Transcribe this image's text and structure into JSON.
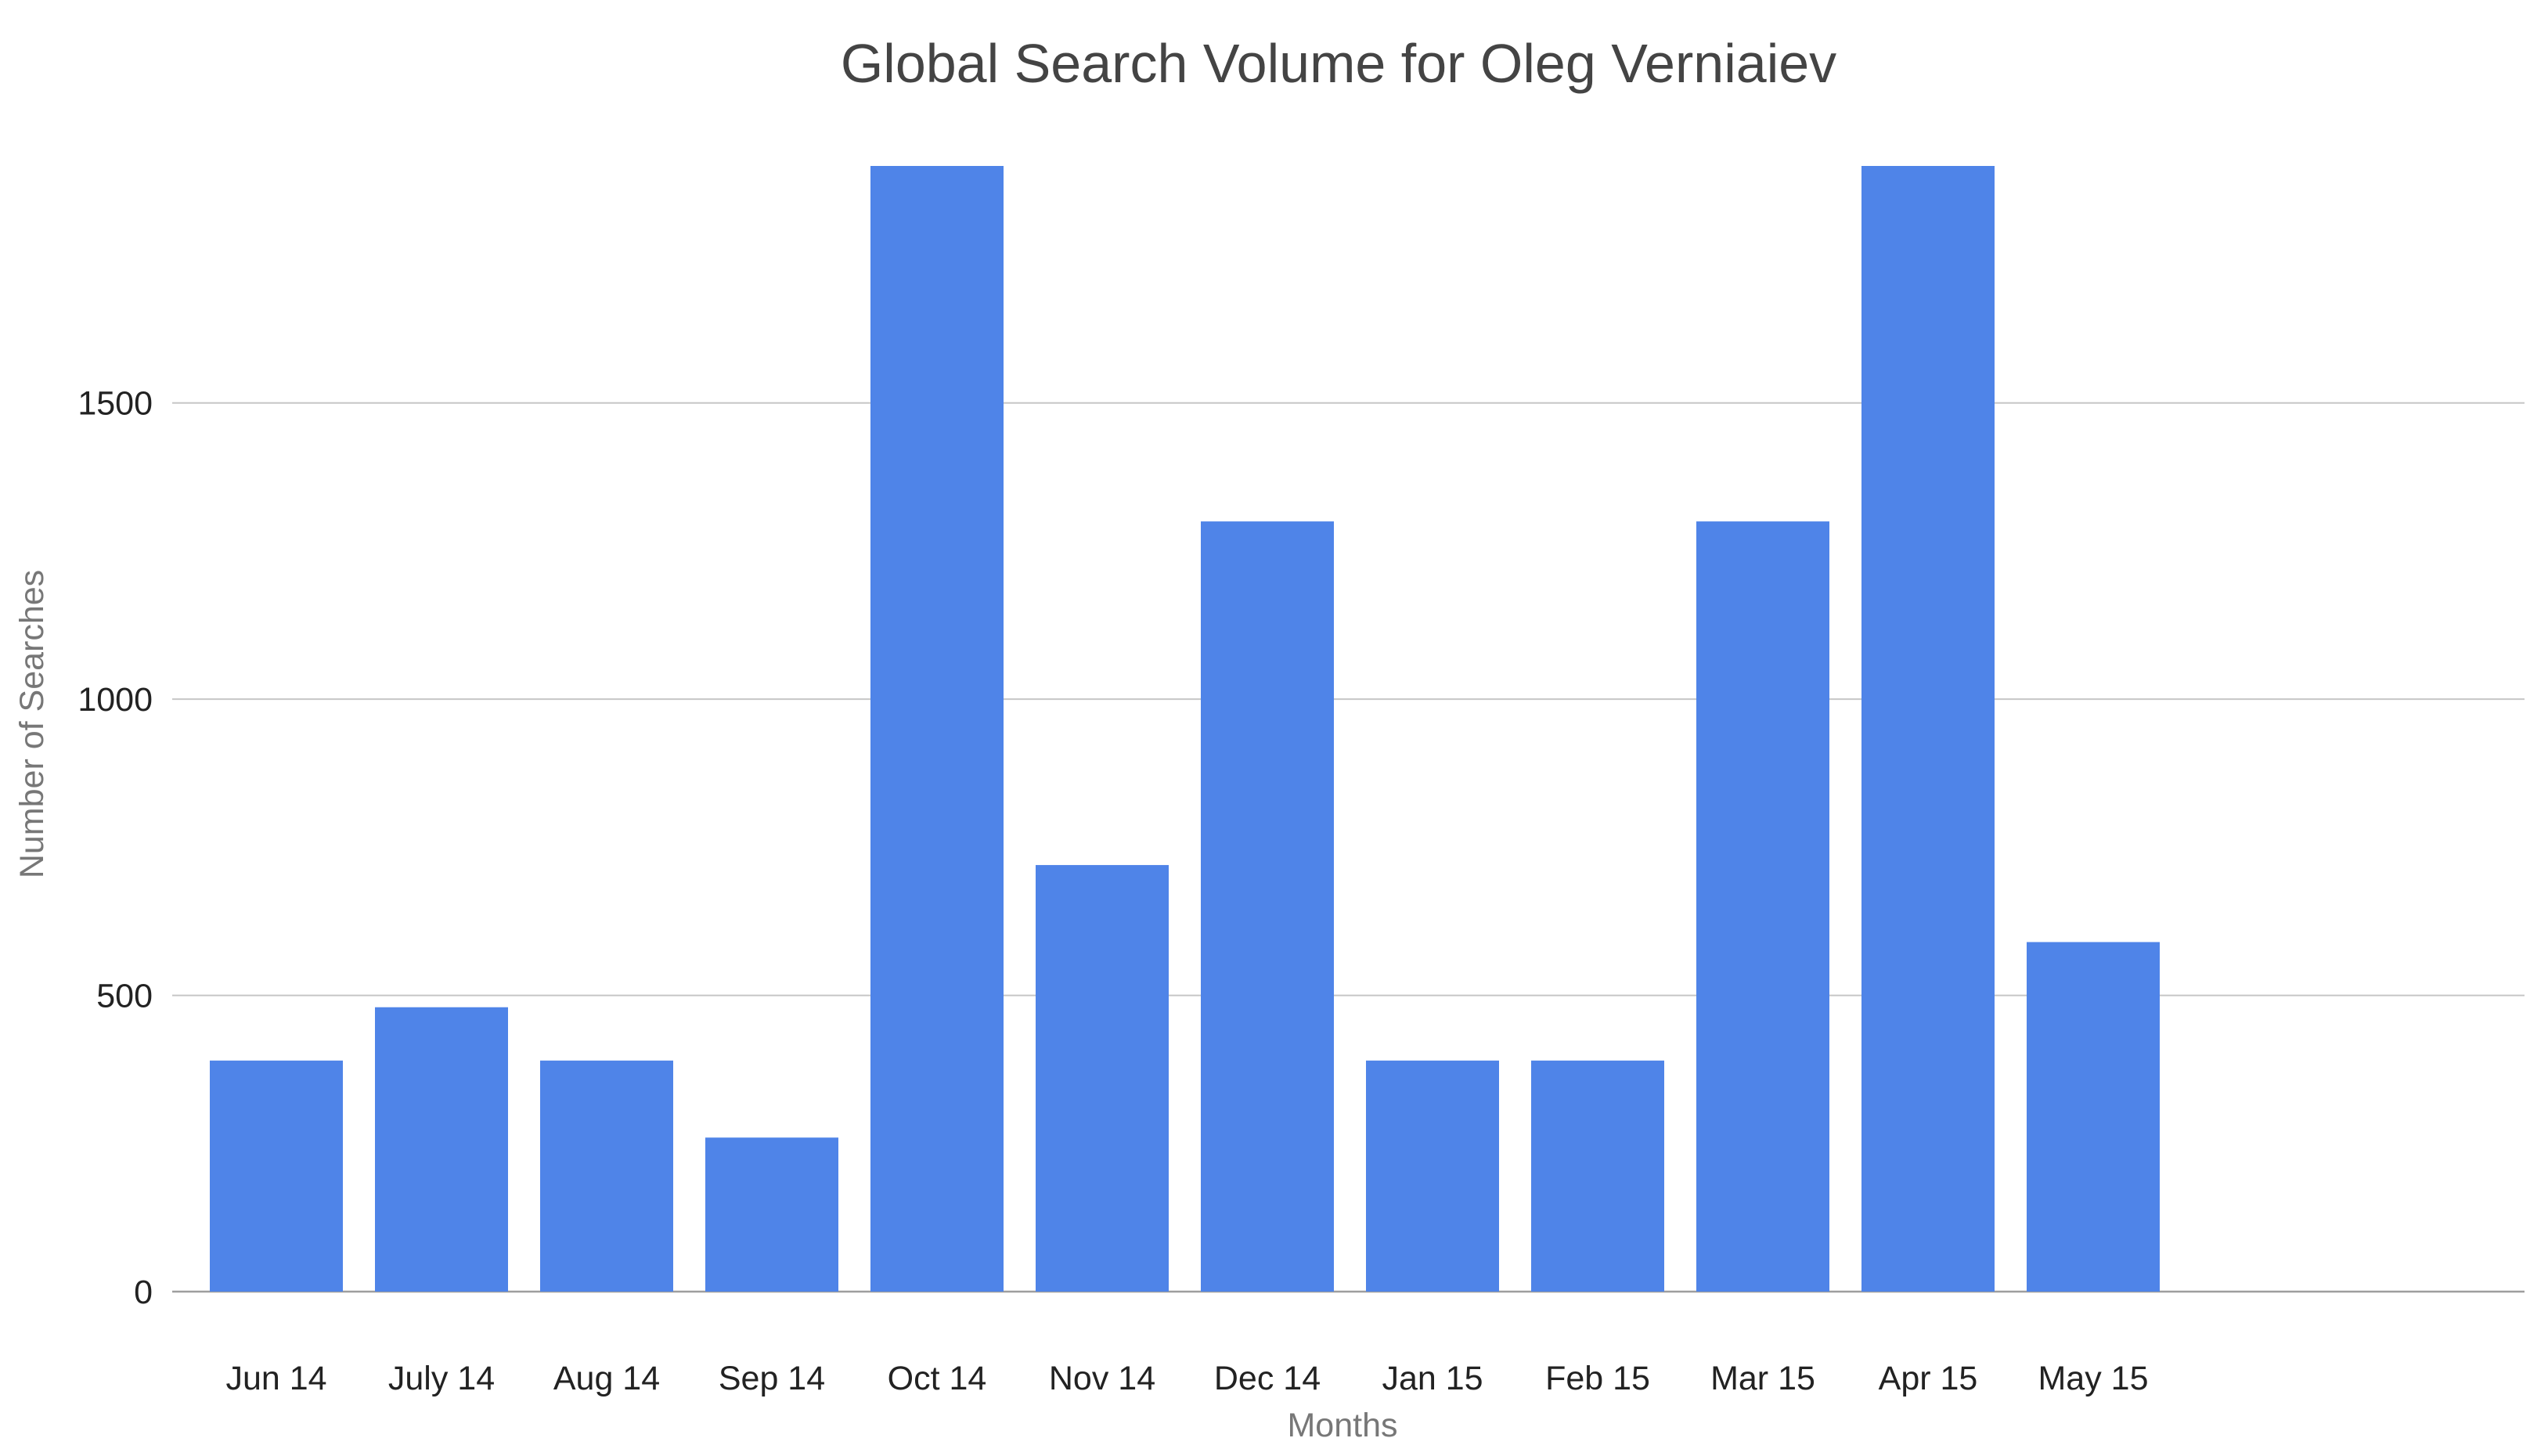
{
  "chart_data": {
    "type": "bar",
    "title": "Global Search Volume for Oleg Verniaiev",
    "xlabel": "Months",
    "ylabel": "Number of Searches",
    "categories": [
      "Jun 14",
      "July 14",
      "Aug 14",
      "Sep 14",
      "Oct 14",
      "Nov 14",
      "Dec 14",
      "Jan 15",
      "Feb 15",
      "Mar 15",
      "Apr 15",
      "May 15"
    ],
    "series": [
      {
        "values": [
          390,
          480,
          390,
          260,
          1900,
          720,
          1300,
          390,
          390,
          1300,
          1900,
          590
        ]
      }
    ],
    "yticks": [
      "0",
      "500",
      "1000",
      "1500"
    ],
    "ylim": [
      0,
      1900
    ],
    "grid": true,
    "legend": "none",
    "bar_color": "#4f84e8"
  }
}
